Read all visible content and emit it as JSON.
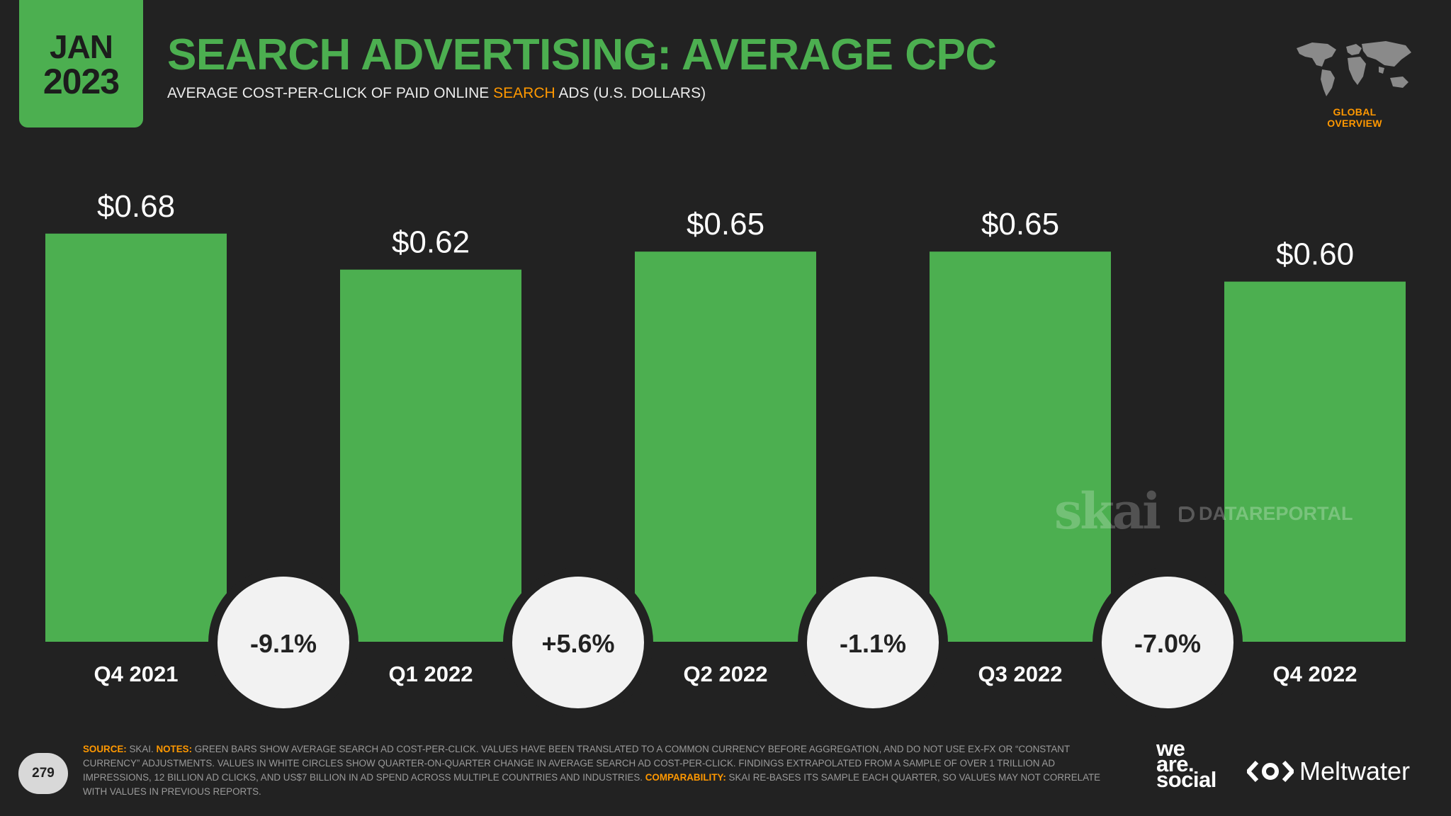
{
  "header": {
    "month": "JAN",
    "year": "2023",
    "title": "SEARCH ADVERTISING: AVERAGE CPC",
    "subtitle_pre": "AVERAGE COST-PER-CLICK OF PAID ONLINE ",
    "subtitle_highlight": "SEARCH",
    "subtitle_post": " ADS (U.S. DOLLARS)",
    "section_label": "GLOBAL OVERVIEW"
  },
  "colors": {
    "background": "#222222",
    "bar": "#4caf50",
    "accent": "#ff9800",
    "circle": "#f2f2f2"
  },
  "chart_data": {
    "type": "bar",
    "categories": [
      "Q4 2021",
      "Q1 2022",
      "Q2 2022",
      "Q3 2022",
      "Q4 2022"
    ],
    "values": [
      0.68,
      0.62,
      0.65,
      0.65,
      0.6
    ],
    "value_labels": [
      "$0.68",
      "$0.62",
      "$0.65",
      "$0.65",
      "$0.60"
    ],
    "changes": [
      "-9.1%",
      "+5.6%",
      "-1.1%",
      "-7.0%"
    ],
    "title": "SEARCH ADVERTISING: AVERAGE CPC",
    "xlabel": "",
    "ylabel": "",
    "ylim": [
      0,
      0.76
    ],
    "grid": false,
    "legend": "none"
  },
  "watermarks": {
    "skai": "skai",
    "datareportal": "DATAREPORTAL"
  },
  "footer": {
    "page_number": "279",
    "source_key": "SOURCE:",
    "source_text": " SKAI. ",
    "notes_key": "NOTES:",
    "notes_text": " GREEN BARS SHOW AVERAGE SEARCH AD COST-PER-CLICK. VALUES HAVE BEEN TRANSLATED TO A COMMON CURRENCY BEFORE AGGREGATION, AND DO NOT USE EX-FX OR “CONSTANT CURRENCY” ADJUSTMENTS. VALUES IN WHITE CIRCLES SHOW QUARTER-ON-QUARTER CHANGE IN AVERAGE SEARCH AD COST-PER-CLICK. FINDINGS EXTRAPOLATED FROM A SAMPLE OF OVER 1 TRILLION AD IMPRESSIONS, 12 BILLION AD CLICKS, AND US$7 BILLION IN AD SPEND ACROSS MULTIPLE COUNTRIES AND INDUSTRIES. ",
    "comparability_key": "COMPARABILITY:",
    "comparability_text": " SKAI RE-BASES ITS SAMPLE EACH QUARTER, SO VALUES MAY NOT CORRELATE WITH VALUES IN PREVIOUS REPORTS.",
    "brand_we": "we",
    "brand_are": "are.",
    "brand_social": "social",
    "brand_meltwater": "Meltwater",
    "map_icon": "world-map-icon",
    "meltwater_icon": "meltwater-logo-icon"
  }
}
